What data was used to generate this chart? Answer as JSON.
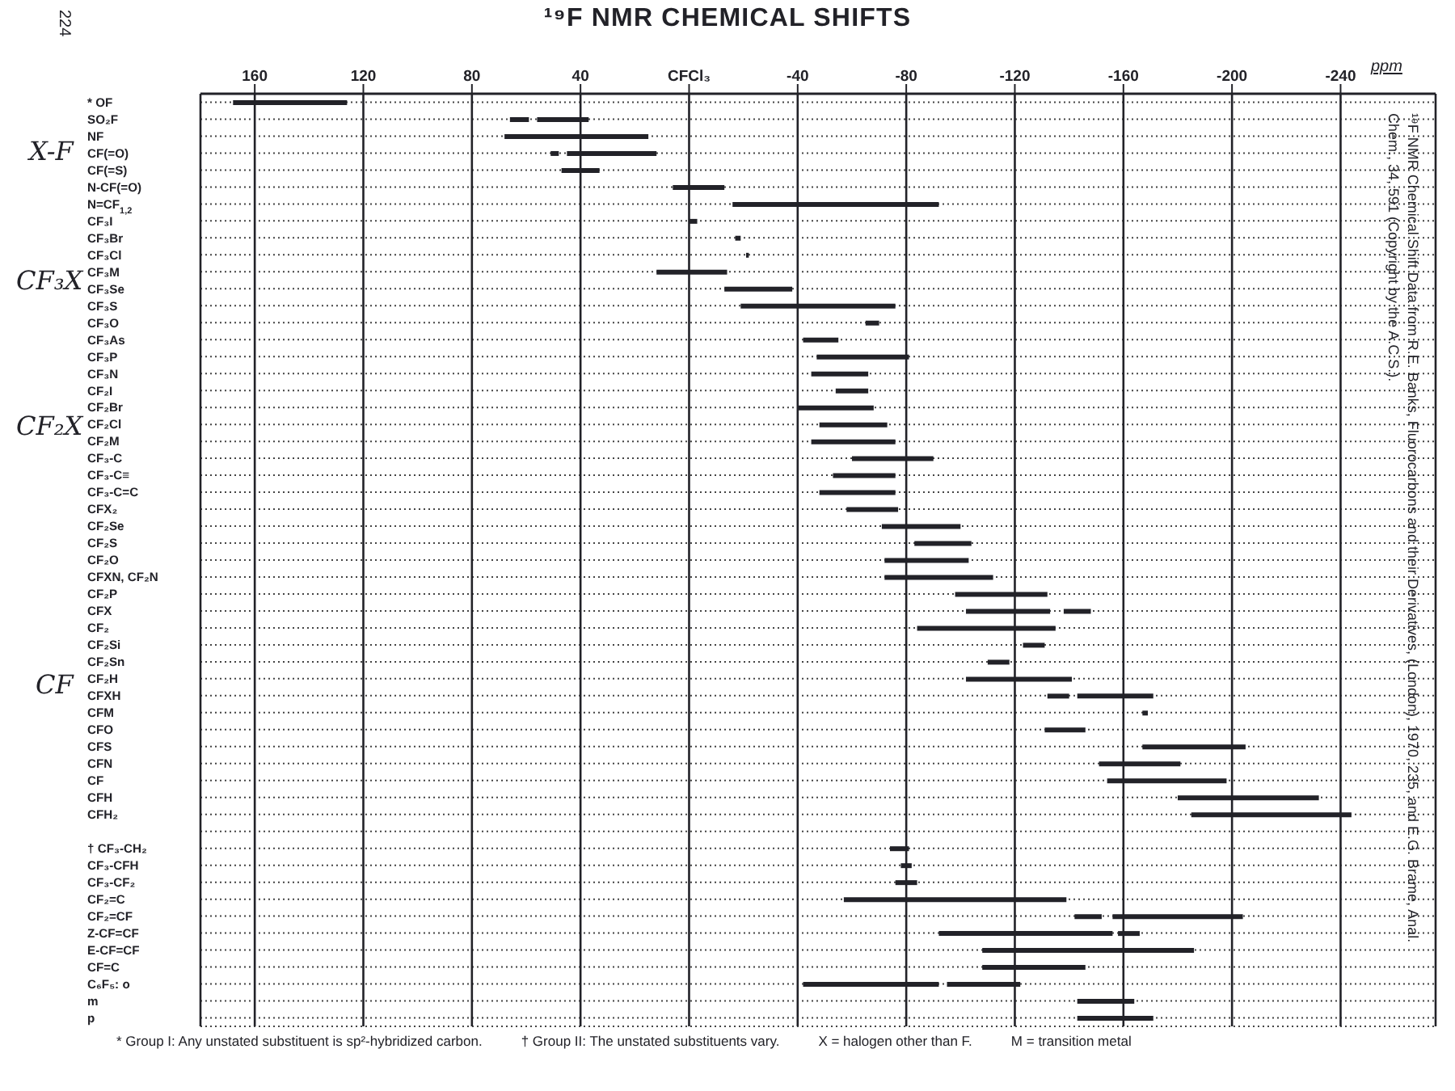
{
  "chart_data": {
    "type": "bar",
    "orientation": "horizontal",
    "title": "¹⁹F NMR CHEMICAL SHIFTS",
    "xlabel": "ppm",
    "categories": [
      "* OF",
      "SO₂F",
      "NF",
      "CF(=O)",
      "CF(=S)",
      "N-CF(=O)",
      "N=CF$_{1,2}$",
      "CF₃I",
      "CF₃Br",
      "CF₃Cl",
      "CF₃M",
      "CF₃Se",
      "CF₃S",
      "CF₃O",
      "CF₃As",
      "CF₃P",
      "CF₃N",
      "CF₂I",
      "CF₂Br",
      "CF₂Cl",
      "CF₂M",
      "CF₃-C",
      "CF₃-C≡",
      "CF₃-C=C",
      "CFX₂",
      "CF₂Se",
      "CF₂S",
      "CF₂O",
      "CFXN, CF₂N",
      "CF₂P",
      "CFX",
      "CF₂",
      "CF₂Si",
      "CF₂Sn",
      "CF₂H",
      "CFXH",
      "CFM",
      "CFO",
      "CFS",
      "CFN",
      "CF",
      "CFH",
      "CFH₂",
      null,
      "† CF₃-CH₂",
      "CF₃-CFH",
      "CF₃-CF₂",
      "CF₂=C",
      "CF₂=CF",
      "Z-CF=CF",
      "E-CF=CF",
      "CF=C",
      "C₆F₅: o",
      "m",
      "p"
    ],
    "series": [
      {
        "color": "#222228",
        "base": [
          126,
          37,
          15,
          12,
          33,
          -13,
          -92,
          -3,
          -19,
          -22,
          -14,
          -38,
          -76,
          -70,
          -55,
          -81,
          -66,
          -66,
          -68,
          -73,
          -76,
          -90,
          -76,
          -76,
          -77,
          -100,
          -104,
          -103,
          -112,
          -132,
          -133,
          -135,
          -131,
          -118,
          -141,
          -171,
          -169,
          -146,
          -205,
          -181,
          -198,
          -232,
          -244,
          null,
          -81,
          -82,
          -84,
          -139,
          -204,
          -156,
          -186,
          -146,
          -92,
          -164,
          -171
        ],
        "values": [
          42,
          19,
          53,
          33,
          14,
          19,
          76,
          3,
          2,
          1,
          26,
          25,
          57,
          5,
          13,
          34,
          21,
          12,
          28,
          25,
          31,
          30,
          23,
          28,
          19,
          29,
          21,
          31,
          40,
          34,
          31,
          51,
          8,
          8,
          39,
          28,
          2,
          15,
          38,
          30,
          44,
          52,
          59,
          null,
          7,
          4,
          8,
          82,
          48,
          64,
          78,
          38,
          50,
          21,
          28
        ]
      },
      {
        "color": "#222228",
        "base": [
          null,
          59,
          null,
          48,
          null,
          null,
          null,
          null,
          null,
          null,
          null,
          null,
          null,
          null,
          null,
          null,
          null,
          null,
          null,
          null,
          null,
          null,
          null,
          null,
          null,
          null,
          null,
          null,
          null,
          null,
          -148,
          null,
          null,
          null,
          null,
          -140,
          null,
          null,
          null,
          null,
          null,
          null,
          null,
          null,
          null,
          null,
          null,
          null,
          -152,
          -166,
          null,
          null,
          -122,
          null,
          null
        ],
        "values": [
          null,
          7,
          null,
          3,
          null,
          null,
          null,
          null,
          null,
          null,
          null,
          null,
          null,
          null,
          null,
          null,
          null,
          null,
          null,
          null,
          null,
          null,
          null,
          null,
          null,
          null,
          null,
          null,
          null,
          null,
          10,
          null,
          null,
          null,
          null,
          8,
          null,
          null,
          null,
          null,
          null,
          null,
          null,
          null,
          null,
          null,
          null,
          null,
          10,
          8,
          null,
          null,
          27,
          null,
          null
        ]
      }
    ],
    "xlim": [
      180,
      -275
    ],
    "xticks": [
      160,
      120,
      80,
      40,
      {
        "value": 0,
        "label": "CFCl₃"
      },
      -40,
      -80,
      -120,
      -160,
      -200,
      -240
    ],
    "grid": true,
    "annotations": [
      "224",
      "X-F",
      "CF₃X",
      "CF₂X",
      "CF",
      "¹⁹F NMR Chemical Shift Data from R.E. Banks, Fluorocarbons and their Derivatives, (London), 1970, 235, and E.G. Brame, Anal. Chem., 34, 591 (Copyright by the A.C.S.).",
      "* Group I: Any unstated substituent is sp²-hybridized carbon.",
      "† Group II: The unstated substituents vary.",
      "X = halogen other than F.",
      "M = transition metal"
    ]
  }
}
